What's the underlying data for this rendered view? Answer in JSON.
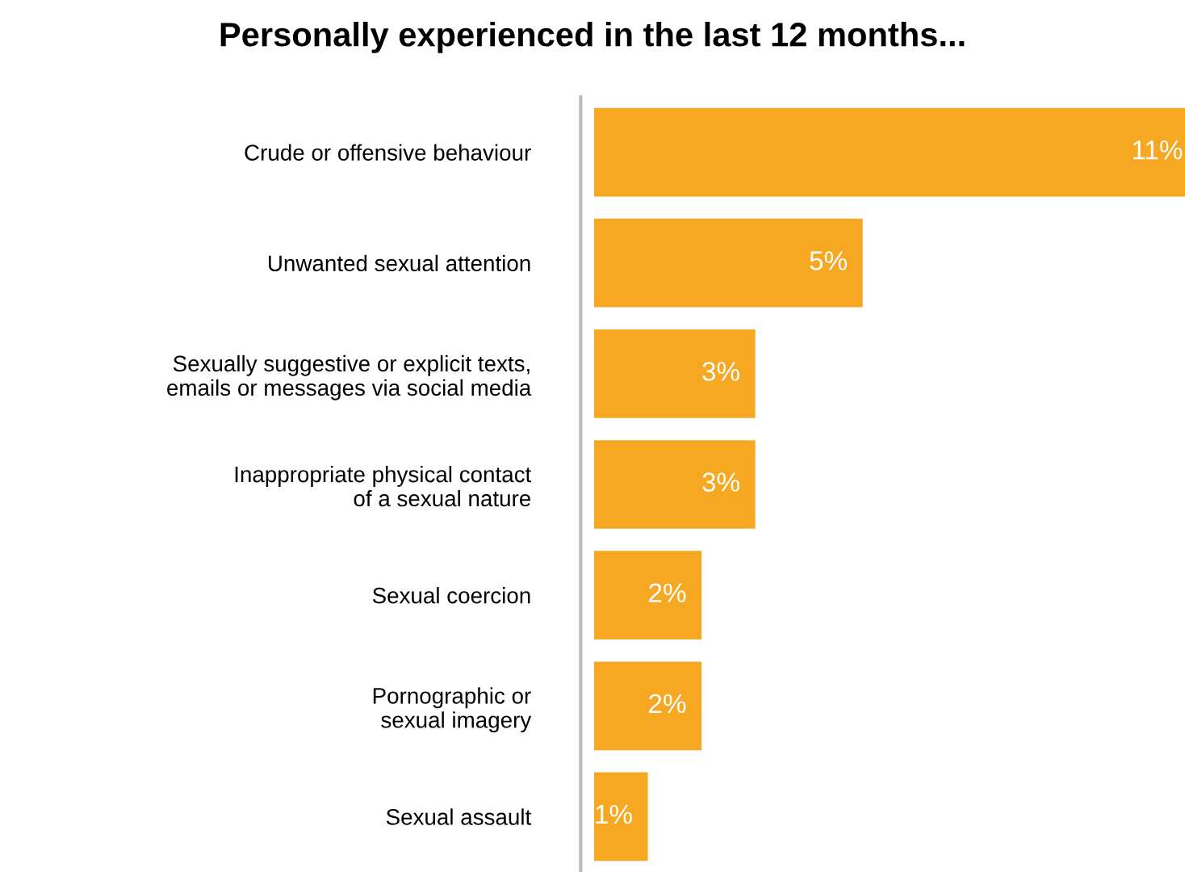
{
  "chart_data": {
    "type": "bar",
    "orientation": "horizontal",
    "title": "Personally experienced in the last 12 months...",
    "categories": [
      "Crude or offensive behaviour",
      "Unwanted sexual attention",
      "Sexually suggestive or explicit texts,\nemails or messages via social media",
      "Inappropriate physical contact\nof a sexual nature",
      "Sexual coercion",
      "Pornographic or\nsexual imagery",
      "Sexual assault"
    ],
    "values": [
      11,
      5,
      3,
      3,
      2,
      2,
      1
    ],
    "value_labels": [
      "11%",
      "5%",
      "3%",
      "3%",
      "2%",
      "2%",
      "1%"
    ],
    "color": "#f7a823",
    "grid": false,
    "legend": false
  }
}
